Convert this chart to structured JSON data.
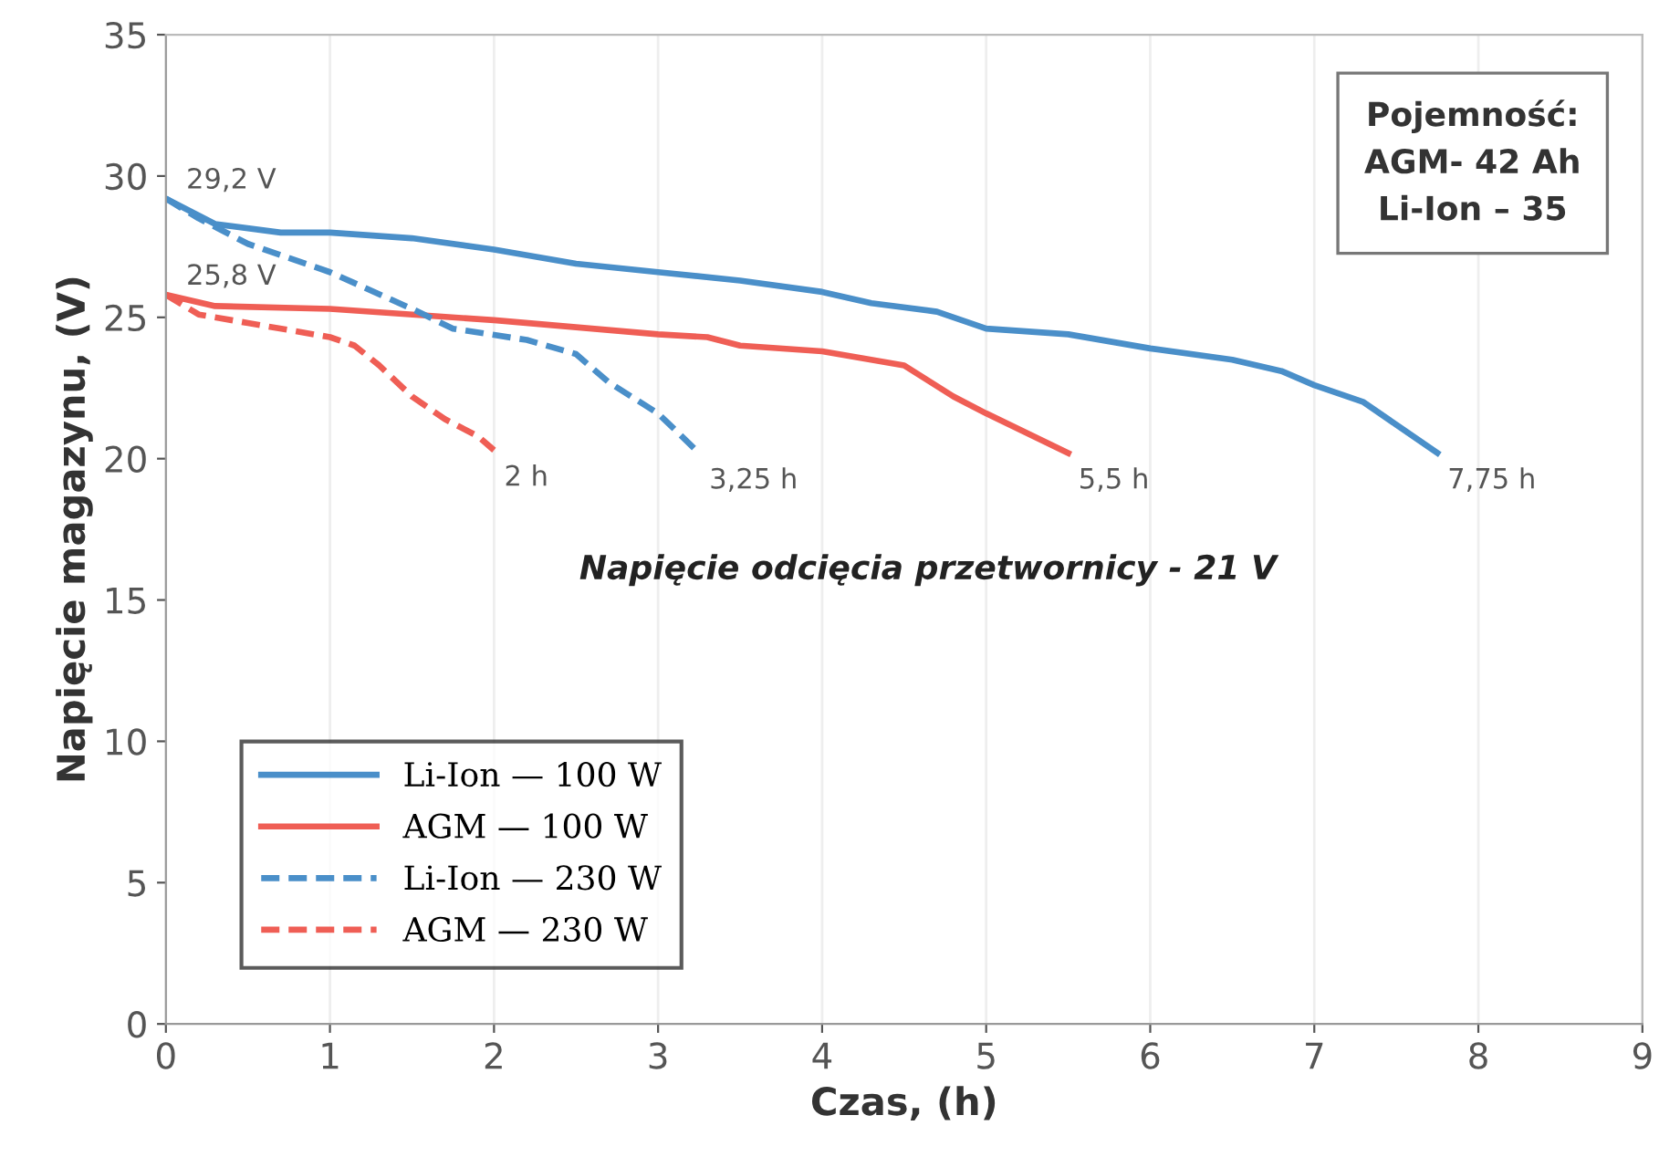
{
  "chart_data": {
    "type": "line",
    "xlabel": "Czas, (h)",
    "ylabel": "Napięcie magazynu, (V)",
    "xlim": [
      0,
      9
    ],
    "xticks": [
      0,
      1,
      2,
      3,
      4,
      5,
      6,
      7,
      8,
      9
    ],
    "ylim": [
      0,
      35
    ],
    "yticks": [
      0,
      5,
      10,
      15,
      20,
      25,
      30,
      35
    ],
    "grid": "x",
    "legend": "bottom left",
    "marker": "none",
    "series": [
      {
        "name": "Li-Ion — 100 W",
        "color": "#4a8fc9",
        "line_style": "solid",
        "x": [
          0,
          0.3,
          0.7,
          1.0,
          1.5,
          2,
          2.5,
          3,
          3.5,
          4,
          4.3,
          4.7,
          5,
          5.5,
          6,
          6.5,
          6.8,
          7,
          7.3,
          7.5,
          7.75
        ],
        "values": [
          29.2,
          28.3,
          28.0,
          28.0,
          27.8,
          27.4,
          26.9,
          26.6,
          26.3,
          25.9,
          25.5,
          25.2,
          24.6,
          24.4,
          23.9,
          23.5,
          23.1,
          22.6,
          22.0,
          21.2,
          20.2
        ]
      },
      {
        "name": "AGM — 100 W",
        "color": "#ef5e55",
        "line_style": "solid",
        "x": [
          0,
          0.3,
          1,
          2,
          3,
          3.3,
          3.5,
          4,
          4.5,
          4.8,
          5,
          5.5
        ],
        "values": [
          25.8,
          25.4,
          25.3,
          24.9,
          24.4,
          24.3,
          24.0,
          23.8,
          23.3,
          22.2,
          21.6,
          20.2
        ]
      },
      {
        "name": "Li-Ion — 230 W",
        "color": "#4a8fc9",
        "line_style": "dashed",
        "x": [
          0,
          0.2,
          0.5,
          1,
          1.5,
          1.75,
          2.2,
          2.5,
          2.7,
          3.0,
          3.25
        ],
        "values": [
          29.2,
          28.5,
          27.6,
          26.6,
          25.3,
          24.6,
          24.2,
          23.7,
          22.7,
          21.6,
          20.2
        ]
      },
      {
        "name": "AGM — 230 W",
        "color": "#ef5e55",
        "line_style": "dashed",
        "x": [
          0,
          0.2,
          0.5,
          1,
          1.15,
          1.3,
          1.5,
          1.7,
          1.9,
          2.0
        ],
        "values": [
          25.8,
          25.1,
          24.8,
          24.3,
          24.0,
          23.3,
          22.2,
          21.4,
          20.8,
          20.3
        ]
      }
    ],
    "annotations": [
      {
        "text": "29,2 V",
        "x": 0,
        "y": 29.2
      },
      {
        "text": "25,8 V",
        "x": 0,
        "y": 25.8
      },
      {
        "text": "2 h",
        "x": 2,
        "y": 20.3
      },
      {
        "text": "3,25 h",
        "x": 3.25,
        "y": 20.2
      },
      {
        "text": "5,5 h",
        "x": 5.5,
        "y": 20.2
      },
      {
        "text": "7,75 h",
        "x": 7.75,
        "y": 20.2
      },
      "Napięcie odcięcia przetwornicy - 21 V",
      "Pojemność:\nAGM- 42 Ah\nLi-Ion – 35"
    ]
  }
}
